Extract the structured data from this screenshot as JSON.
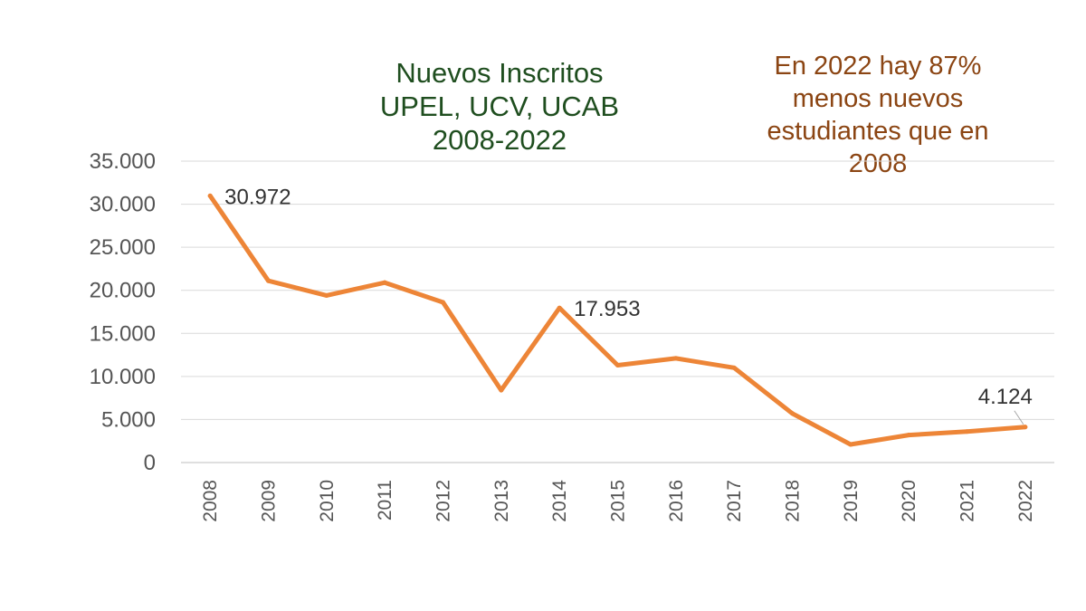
{
  "chart_data": {
    "type": "line",
    "title_lines": [
      "Nuevos Inscritos",
      "UPEL, UCV, UCAB",
      "2008-2022"
    ],
    "annotation_lines": [
      "En 2022 hay  87%",
      "menos nuevos",
      "estudiantes que en",
      "2008"
    ],
    "x": [
      "2008",
      "2009",
      "2010",
      "2011",
      "2012",
      "2013",
      "2014",
      "2015",
      "2016",
      "2017",
      "2018",
      "2019",
      "2020",
      "2021",
      "2022"
    ],
    "series": [
      {
        "values": [
          30972,
          21100,
          19400,
          20900,
          18600,
          8400,
          17953,
          11300,
          12100,
          11000,
          5700,
          2100,
          3200,
          3600,
          4124
        ]
      }
    ],
    "y_ticks": [
      "0",
      "5.000",
      "10.000",
      "15.000",
      "20.000",
      "25.000",
      "30.000",
      "35.000"
    ],
    "ylim": [
      0,
      35000
    ],
    "data_labels": [
      {
        "index": 0,
        "text": "30.972"
      },
      {
        "index": 6,
        "text": "17.953"
      },
      {
        "index": 14,
        "text": "4.124"
      }
    ],
    "grid": true,
    "legend": "none",
    "colors": {
      "line": "#ED8537",
      "grid": "#d9d9d9",
      "title": "#1f4e1f",
      "annotation": "#8b4513"
    }
  }
}
